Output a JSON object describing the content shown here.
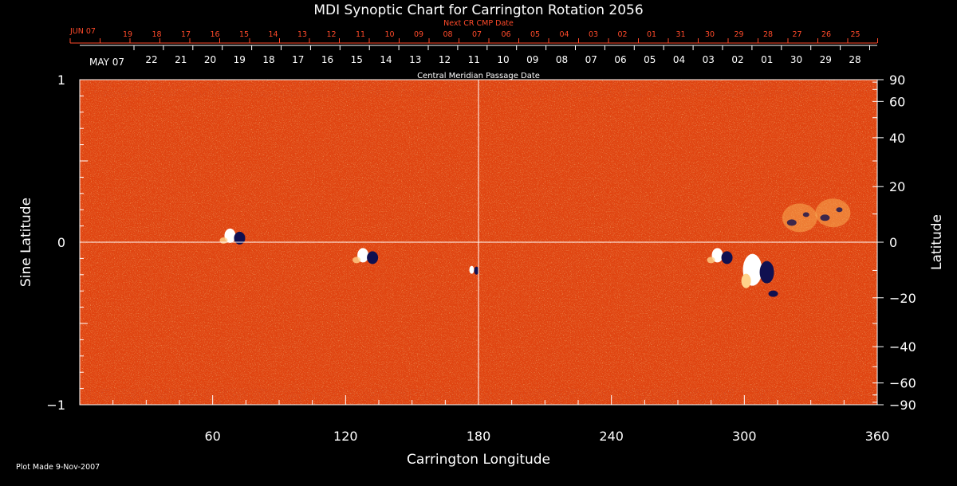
{
  "chart_data": {
    "type": "heatmap",
    "title": "MDI Synoptic Chart for Carrington Rotation 2056",
    "xlabel": "Carrington Longitude",
    "ylabel_left": "Sine Latitude",
    "ylabel_right": "Latitude",
    "xlim": [
      0,
      360
    ],
    "ylim": [
      -1,
      1
    ],
    "x_ticks": [
      60,
      120,
      180,
      240,
      300,
      360
    ],
    "x_tick_labels": [
      "60",
      "120",
      "180",
      "240",
      "300",
      "360"
    ],
    "y_left_ticks": [
      1,
      0,
      -1
    ],
    "y_left_tick_labels": [
      "1",
      "0",
      "−1"
    ],
    "y_right_ticks_deg": [
      90,
      60,
      40,
      20,
      0,
      -20,
      -40,
      -60,
      -90
    ],
    "y_right_tick_labels": [
      "90",
      "60",
      "40",
      "20",
      "0",
      "−20",
      "−40",
      "−60",
      "−90"
    ],
    "top_axis_label": "Central Meridian Passage Date",
    "top_axis_month_label": "MAY 07",
    "top_axis_dates": [
      "22",
      "21",
      "20",
      "19",
      "18",
      "17",
      "16",
      "15",
      "14",
      "13",
      "12",
      "11",
      "10",
      "09",
      "08",
      "07",
      "06",
      "05",
      "04",
      "03",
      "02",
      "01",
      "30",
      "29",
      "28"
    ],
    "second_axis_label": "Next CR CMP Date",
    "second_axis_month_label": "JUN 07",
    "second_axis_dates": [
      "19",
      "18",
      "17",
      "16",
      "15",
      "14",
      "13",
      "12",
      "11",
      "10",
      "09",
      "08",
      "07",
      "06",
      "05",
      "04",
      "03",
      "02",
      "01",
      "31",
      "30",
      "29",
      "28",
      "27",
      "26",
      "25"
    ],
    "grid": "lines at longitude 180 and sine latitude 0",
    "colors": {
      "background": "#000000",
      "field_base": "#e04410",
      "positive": "#ffffff",
      "negative": "#101050",
      "secondary_axis_text": "#ff4a2a"
    },
    "regions": [
      {
        "lon": 70,
        "sinlat": 0.03,
        "note": "bipolar region"
      },
      {
        "lon": 130,
        "sinlat": -0.09,
        "note": "bipolar region"
      },
      {
        "lon": 178,
        "sinlat": -0.17,
        "note": "small bipolar"
      },
      {
        "lon": 290,
        "sinlat": -0.09,
        "note": "bipolar region"
      },
      {
        "lon": 308,
        "sinlat": -0.17,
        "note": "large bipolar active region"
      },
      {
        "lon": 340,
        "sinlat": 0.18,
        "note": "decaying region"
      },
      {
        "lon": 325,
        "sinlat": 0.15,
        "note": "decaying region"
      }
    ]
  },
  "footer": {
    "text": "Plot Made  9-Nov-2007"
  }
}
